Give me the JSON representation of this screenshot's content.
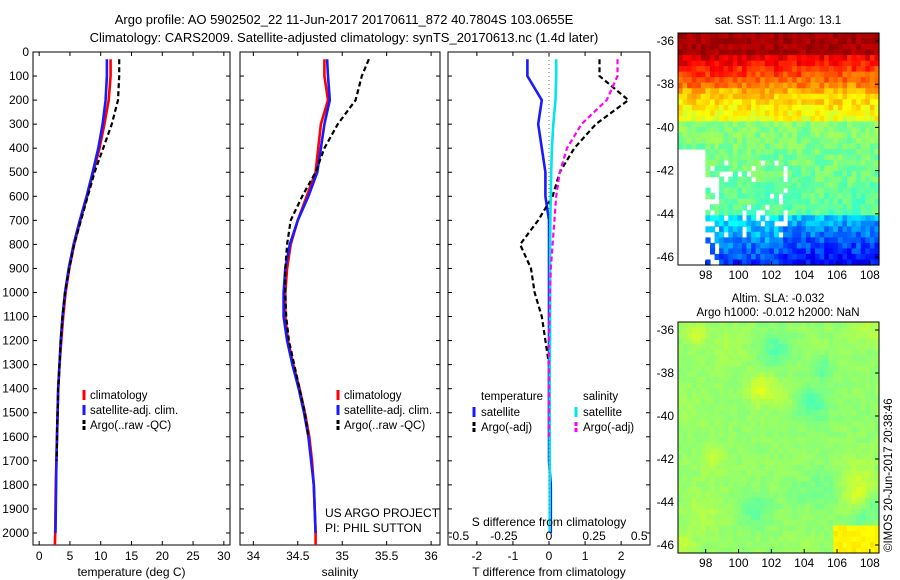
{
  "header": {
    "title_line1": "Argo profile: AO 5902502_22 11-Jun-2017 20170611_872 40.7804S 103.0655E",
    "title_line2": "Climatology: CARS2009. Satellite-adjusted climatology: synTS_20170613.nc (1.4d later)"
  },
  "footer": {
    "project": "US ARGO PROJECT",
    "pi": "PI: PHIL SUTTON",
    "credit": "©IMOS 20-Jun-2017 20:38:46"
  },
  "colors": {
    "climatology": "#ff0000",
    "satellite_adj": "#1a1aff",
    "argo": "#000000",
    "sal_satellite": "#00e5ee",
    "sal_argo": "#ff00ff"
  },
  "chart_data": [
    {
      "id": "temperature",
      "type": "line",
      "xlabel": "temperature (deg C)",
      "ylabel": "",
      "xlim": [
        -1,
        31
      ],
      "ylim": [
        2050,
        0
      ],
      "xticks": [
        0,
        5,
        10,
        15,
        20,
        25,
        30
      ],
      "yticks": [
        0,
        100,
        200,
        300,
        400,
        500,
        600,
        700,
        800,
        900,
        1000,
        1100,
        1200,
        1300,
        1400,
        1500,
        1600,
        1700,
        1800,
        1900,
        2000
      ],
      "legend": [
        "climatology",
        "satellite-adj. clim.",
        "Argo(..raw -QC)"
      ],
      "series": [
        {
          "name": "climatology",
          "style": "solid",
          "color": "#ff0000",
          "x": [
            11.6,
            11.6,
            11.3,
            10.6,
            9.8,
            8.8,
            7.8,
            6.7,
            5.7,
            4.9,
            4.3,
            3.9,
            3.6,
            3.3,
            3.1,
            3.0,
            2.9,
            2.8,
            2.7,
            2.65,
            2.6,
            2.55
          ],
          "y": [
            30,
            100,
            200,
            300,
            400,
            500,
            600,
            700,
            800,
            900,
            1000,
            1100,
            1200,
            1300,
            1400,
            1500,
            1600,
            1700,
            1800,
            1900,
            2000,
            2050
          ]
        },
        {
          "name": "satellite-adj. clim.",
          "style": "solid",
          "color": "#1a1aff",
          "x": [
            11.0,
            11.0,
            10.8,
            10.3,
            9.6,
            8.7,
            7.7,
            6.6,
            5.6,
            4.8,
            4.2,
            3.8,
            3.5,
            3.3,
            3.1,
            3.0,
            2.9,
            2.8,
            2.75,
            2.7,
            2.65
          ],
          "y": [
            30,
            100,
            200,
            300,
            400,
            500,
            600,
            700,
            800,
            900,
            1000,
            1100,
            1200,
            1300,
            1400,
            1500,
            1600,
            1700,
            1800,
            1900,
            2000
          ]
        },
        {
          "name": "Argo(..raw -QC)",
          "style": "dash",
          "color": "#000000",
          "x": [
            13.0,
            13.0,
            12.8,
            11.8,
            10.4,
            9.0,
            7.9,
            6.8,
            5.7,
            4.9,
            4.2,
            3.8,
            3.5,
            3.3,
            3.1,
            3.0,
            2.9,
            2.85
          ],
          "y": [
            30,
            100,
            200,
            300,
            400,
            500,
            600,
            700,
            800,
            900,
            1000,
            1100,
            1200,
            1300,
            1400,
            1500,
            1600,
            1700
          ]
        }
      ]
    },
    {
      "id": "salinity",
      "type": "line",
      "xlabel": "salinity",
      "ylabel": "",
      "xlim": [
        33.85,
        36.1
      ],
      "ylim": [
        2050,
        0
      ],
      "xticks": [
        34,
        34.5,
        35,
        35.5,
        36
      ],
      "xticklabels": [
        "34",
        "34.5",
        "35",
        "35.5",
        "36"
      ],
      "legend": [
        "climatology",
        "satellite-adj. clim.",
        "Argo(..raw -QC)"
      ],
      "series": [
        {
          "name": "climatology",
          "style": "solid",
          "color": "#ff0000",
          "x": [
            34.8,
            34.8,
            34.84,
            34.76,
            34.73,
            34.7,
            34.6,
            34.5,
            34.42,
            34.38,
            34.36,
            34.36,
            34.39,
            34.45,
            34.52,
            34.58,
            34.63,
            34.66,
            34.68,
            34.69,
            34.7,
            34.7
          ],
          "y": [
            30,
            100,
            200,
            300,
            400,
            500,
            600,
            700,
            800,
            900,
            1000,
            1100,
            1200,
            1300,
            1400,
            1500,
            1600,
            1700,
            1800,
            1900,
            2000,
            2050
          ]
        },
        {
          "name": "satellite-adj. clim.",
          "style": "solid",
          "color": "#1a1aff",
          "x": [
            34.83,
            34.84,
            34.86,
            34.8,
            34.76,
            34.72,
            34.62,
            34.5,
            34.41,
            34.36,
            34.34,
            34.34,
            34.38,
            34.44,
            34.51,
            34.57,
            34.62,
            34.65,
            34.68,
            34.69,
            34.7
          ],
          "y": [
            30,
            100,
            200,
            300,
            400,
            500,
            600,
            700,
            800,
            900,
            1000,
            1100,
            1200,
            1300,
            1400,
            1500,
            1600,
            1700,
            1800,
            1900,
            2000
          ]
        },
        {
          "name": "Argo(..raw -QC)",
          "style": "dash",
          "color": "#000000",
          "x": [
            35.3,
            35.22,
            35.15,
            34.95,
            34.8,
            34.7,
            34.55,
            34.42,
            34.38,
            34.36,
            34.36,
            34.37,
            34.4,
            34.46,
            34.52,
            34.58,
            34.62
          ],
          "y": [
            30,
            100,
            200,
            300,
            400,
            500,
            600,
            700,
            800,
            900,
            1000,
            1100,
            1200,
            1300,
            1400,
            1500,
            1600
          ]
        }
      ]
    },
    {
      "id": "difference",
      "type": "line",
      "xlabel": "T difference from climatology",
      "xlabel2": "S difference from climatology",
      "xlim": [
        -2.8,
        2.8
      ],
      "ylim": [
        2050,
        0
      ],
      "xticks": [
        -2,
        -1,
        0,
        1,
        2
      ],
      "xticks2": [
        "-0.5",
        "-0.25",
        "0",
        "0.25",
        "0.5"
      ],
      "legend_temp_header": "temperature",
      "legend_sal_header": "salinity",
      "legend_temp": [
        "satellite",
        "Argo(-adj)"
      ],
      "legend_sal": [
        "satellite",
        "Argo(-adj)"
      ],
      "series": [
        {
          "name": "T satellite",
          "style": "solid",
          "color": "#1a1aff",
          "x": [
            -0.6,
            -0.6,
            -0.2,
            -0.3,
            -0.2,
            -0.1,
            -0.1,
            0.0,
            0.0,
            0.0,
            0.0,
            0.0,
            0.0,
            0.0,
            0.0,
            0.0,
            0.0,
            0.0,
            0.05,
            0.05,
            0.05
          ],
          "y": [
            30,
            100,
            200,
            300,
            400,
            500,
            600,
            700,
            800,
            900,
            1000,
            1100,
            1200,
            1300,
            1400,
            1500,
            1600,
            1700,
            1800,
            1900,
            2000
          ]
        },
        {
          "name": "T Argo(-adj)",
          "style": "dash",
          "color": "#000000",
          "x": [
            1.4,
            1.4,
            2.2,
            1.3,
            0.7,
            0.3,
            0.1,
            -0.3,
            -0.8,
            -0.5,
            -0.4,
            -0.2,
            -0.1,
            0.0,
            0.0,
            0.0,
            0.0
          ],
          "y": [
            30,
            100,
            200,
            300,
            400,
            500,
            600,
            700,
            800,
            900,
            1000,
            1100,
            1200,
            1300,
            1400,
            1500,
            1600
          ]
        },
        {
          "name": "S satellite",
          "style": "solid",
          "color": "#00e5ee",
          "x": [
            0.2,
            0.2,
            0.18,
            0.12,
            0.08,
            0.06,
            0.05,
            0.04,
            0.03,
            0.03,
            0.03,
            0.03,
            0.03,
            0.02,
            0.02,
            0.02,
            0.02,
            0.02,
            0.02,
            0.02,
            0.02
          ],
          "y": [
            30,
            100,
            200,
            300,
            400,
            500,
            600,
            700,
            800,
            900,
            1000,
            1100,
            1200,
            1300,
            1400,
            1500,
            1600,
            1700,
            1800,
            1900,
            2000
          ]
        },
        {
          "name": "S Argo(-adj)",
          "style": "dash",
          "color": "#ff00ff",
          "x": [
            1.9,
            1.9,
            1.6,
            0.9,
            0.5,
            0.3,
            0.2,
            0.15,
            0.1,
            0.05,
            0.03,
            0.01,
            0.0,
            0.0,
            0.0,
            0.0,
            0.0
          ],
          "y": [
            30,
            100,
            200,
            300,
            400,
            500,
            600,
            700,
            800,
            900,
            1000,
            1100,
            1200,
            1300,
            1400,
            1500,
            1600
          ]
        }
      ]
    },
    {
      "id": "sst_map",
      "type": "heatmap",
      "title": "sat. SST: 11.1  Argo: 13.1",
      "xticks": [
        "98",
        "100",
        "102",
        "104",
        "106",
        "108"
      ],
      "yticks": [
        "-36",
        "-38",
        "-40",
        "-42",
        "-44",
        "-46"
      ]
    },
    {
      "id": "sla_map",
      "type": "heatmap",
      "title": "Altim. SLA: -0.032",
      "subtitle": "Argo h1000: -0.012 h2000: NaN",
      "xticks": [
        "98",
        "100",
        "102",
        "104",
        "106",
        "108"
      ],
      "yticks": [
        "-36",
        "-38",
        "-40",
        "-42",
        "-44",
        "-46"
      ]
    }
  ]
}
